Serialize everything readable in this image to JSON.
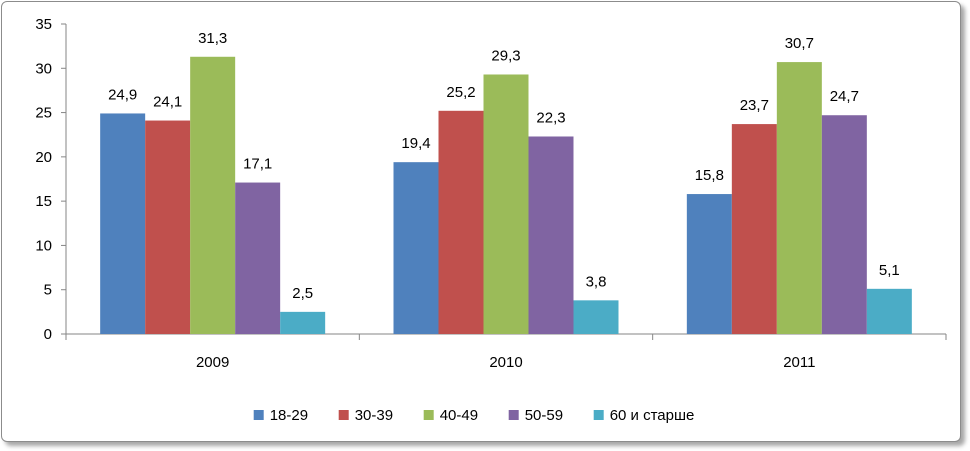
{
  "chart_data": {
    "type": "bar",
    "categories": [
      "2009",
      "2010",
      "2011"
    ],
    "series": [
      {
        "name": "18-29",
        "color": "#4F81BD",
        "values": [
          24.9,
          19.4,
          15.8
        ],
        "labels": [
          "24,9",
          "19,4",
          "15,8"
        ]
      },
      {
        "name": "30-39",
        "color": "#C0504D",
        "values": [
          24.1,
          25.2,
          23.7
        ],
        "labels": [
          "24,1",
          "25,2",
          "23,7"
        ]
      },
      {
        "name": "40-49",
        "color": "#9BBB59",
        "values": [
          31.3,
          29.3,
          30.7
        ],
        "labels": [
          "31,3",
          "29,3",
          "30,7"
        ]
      },
      {
        "name": "50-59",
        "color": "#8064A2",
        "values": [
          17.1,
          22.3,
          24.7
        ],
        "labels": [
          "17,1",
          "22,3",
          "24,7"
        ]
      },
      {
        "name": "60 и старше",
        "color": "#4BACC6",
        "values": [
          2.5,
          3.8,
          5.1
        ],
        "labels": [
          "2,5",
          "3,8",
          "5,1"
        ]
      }
    ],
    "ylim": [
      0,
      35
    ],
    "yticks": [
      0,
      5,
      10,
      15,
      20,
      25,
      30,
      35
    ],
    "title": "",
    "xlabel": "",
    "ylabel": "",
    "grid": false,
    "legend_position": "bottom"
  }
}
